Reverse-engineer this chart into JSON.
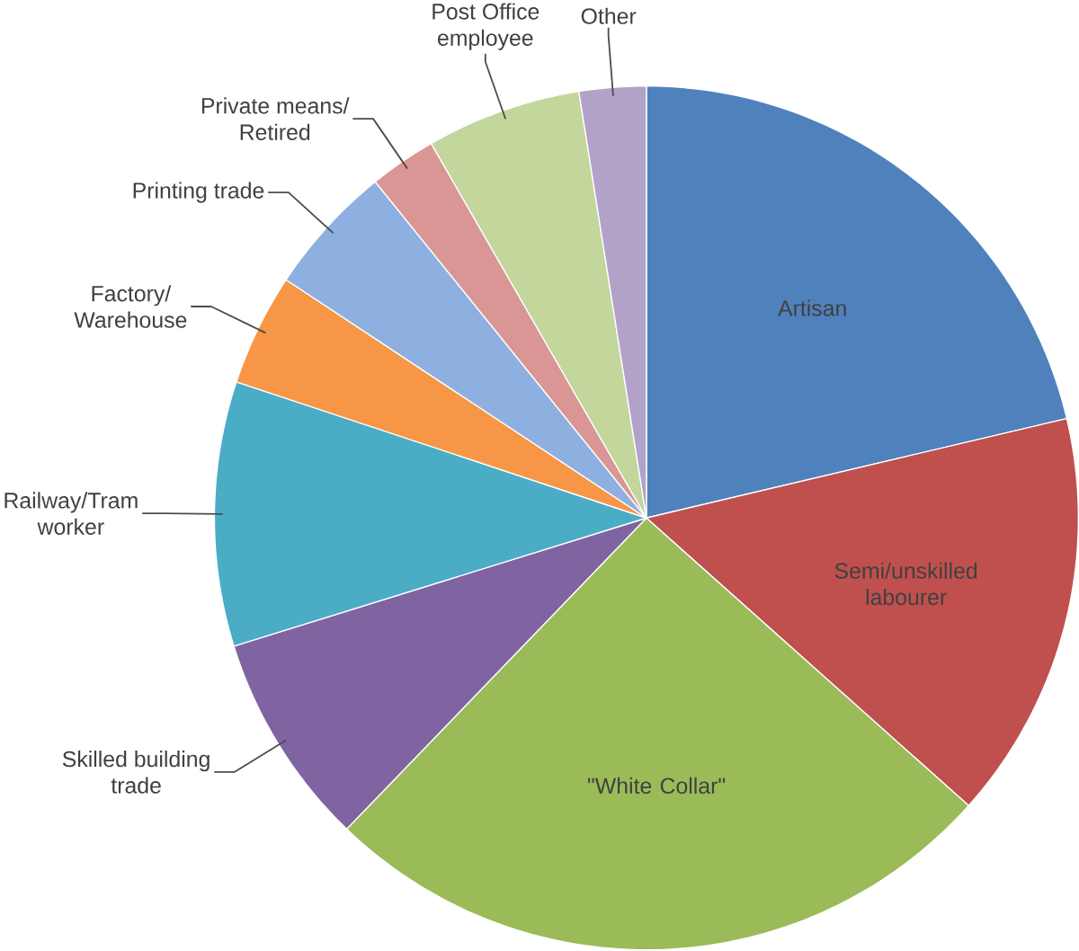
{
  "chart_data": {
    "type": "pie",
    "categories": [
      "Artisan",
      "Semi/unskilled labourer",
      "\"White Collar\"",
      "Skilled building trade",
      "Railway/Tram worker",
      "Factory/ Warehouse",
      "Printing trade",
      "Private means/ Retired",
      "Post Office employee",
      "Other"
    ],
    "values": [
      21.3,
      15.3,
      25.6,
      8.0,
      9.9,
      4.2,
      4.9,
      2.5,
      5.8,
      2.5
    ],
    "colors": [
      "#4f81bd",
      "#c0504d",
      "#9bbb59",
      "#8064a2",
      "#4bacc6",
      "#f79646",
      "#8eb0e0",
      "#d99694",
      "#c3d69b",
      "#b3a2c7"
    ]
  }
}
